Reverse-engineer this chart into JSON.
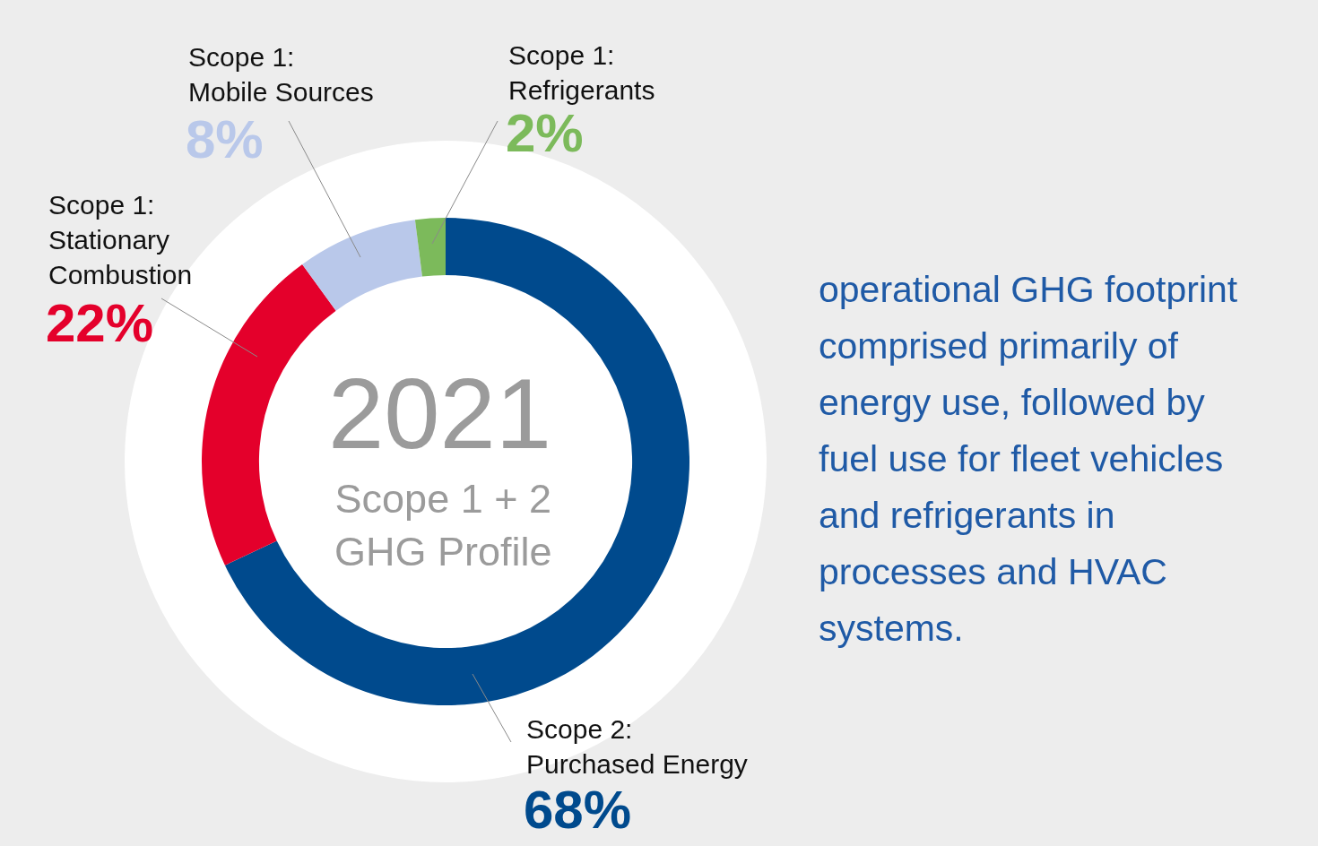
{
  "chart_data": {
    "type": "donut",
    "title": "2021",
    "subtitle": "Scope 1 + 2\nGHG Profile",
    "categories": [
      "Scope 2:\nPurchased Energy",
      "Scope 1:\nStationary\nCombustion",
      "Scope 1:\nMobile Sources",
      "Scope 1:\nRefrigerants"
    ],
    "values": [
      68,
      22,
      8,
      2
    ],
    "colors": [
      "#004a8d",
      "#e4002b",
      "#b9c8ea",
      "#7cba5b"
    ],
    "value_labels": [
      "68%",
      "22%",
      "8%",
      "2%"
    ],
    "annotations": [
      "operational GHG footprint comprised primarily of energy use, followed by fuel use for fleet vehicles and refrigerants in processes and HVAC systems."
    ],
    "legend": false
  }
}
